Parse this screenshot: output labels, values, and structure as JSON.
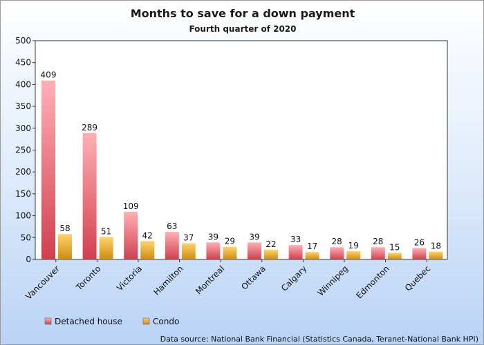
{
  "chart_data": {
    "type": "bar",
    "title": "Months to save for a down payment",
    "subtitle": "Fourth quarter of 2020",
    "categories": [
      "Vancouver",
      "Toronto",
      "Victoria",
      "Hamilton",
      "Montreal",
      "Ottawa",
      "Calgary",
      "Winnipeg",
      "Edmonton",
      "Quebec"
    ],
    "series": [
      {
        "name": "Detached house",
        "values": [
          409,
          289,
          109,
          63,
          39,
          39,
          33,
          28,
          28,
          26
        ],
        "color": "#e8606d"
      },
      {
        "name": "Condo",
        "values": [
          58,
          51,
          42,
          37,
          29,
          22,
          17,
          19,
          15,
          18
        ],
        "color": "#e8a820"
      }
    ],
    "yticks": [
      0,
      50,
      100,
      150,
      200,
      250,
      300,
      350,
      400,
      450,
      500
    ],
    "ylim": [
      0,
      500
    ],
    "xlabel": "",
    "ylabel": "",
    "grid": false,
    "legend": "bottom-left",
    "source": "Data source: National Bank Financial (Statistics Canada, Teranet-National Bank HPI)"
  }
}
